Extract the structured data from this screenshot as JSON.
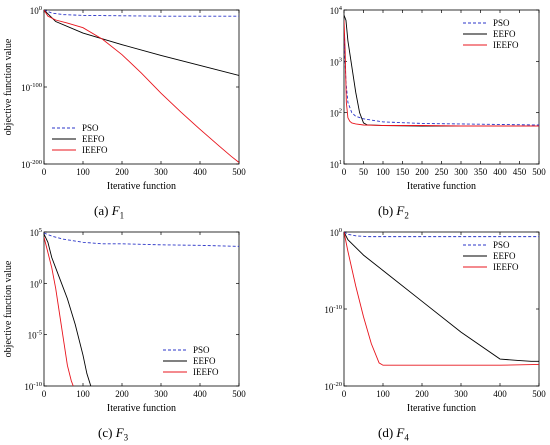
{
  "captions": [
    {
      "label": "(a)",
      "fn": "F",
      "sub": "1"
    },
    {
      "label": "(b)",
      "fn": "F",
      "sub": "2"
    },
    {
      "label": "(c)",
      "fn": "F",
      "sub": "3"
    },
    {
      "label": "(d)",
      "fn": "F",
      "sub": "4"
    }
  ],
  "colors": {
    "PSO": "#2b35c8",
    "EEFO": "#000000",
    "IEEFO": "#e8141c"
  },
  "chart_data": [
    {
      "type": "line",
      "subplot": "a",
      "xlabel": "Iterative function",
      "ylabel": "objective function value",
      "ylog": true,
      "xlim": [
        0,
        500
      ],
      "ylim_exp": [
        -200,
        0
      ],
      "xticks": [
        0,
        100,
        200,
        300,
        400,
        500
      ],
      "yticks": [
        {
          "exp": 0,
          "label": "10",
          "sup": "0"
        },
        {
          "exp": -100,
          "label": "10",
          "sup": "-100"
        },
        {
          "exp": -200,
          "label": "10",
          "sup": "-200"
        }
      ],
      "legend": [
        "PSO",
        "EEFO",
        "IEEFO"
      ],
      "legend_position": "bottom-left",
      "series": [
        {
          "name": "PSO",
          "style": "dashed",
          "x": [
            0,
            20,
            50,
            100,
            200,
            300,
            400,
            500
          ],
          "log10y": [
            0,
            -4,
            -6,
            -7,
            -7.5,
            -8,
            -8,
            -8
          ]
        },
        {
          "name": "EEFO",
          "style": "solid",
          "x": [
            0,
            10,
            30,
            100,
            200,
            300,
            400,
            500
          ],
          "log10y": [
            0,
            -5,
            -15,
            -30,
            -45,
            -59,
            -72,
            -85
          ]
        },
        {
          "name": "IEEFO",
          "style": "solid",
          "x": [
            0,
            10,
            30,
            60,
            100,
            150,
            200,
            250,
            300,
            350,
            400,
            450,
            480,
            500
          ],
          "log10y": [
            0,
            -8,
            -13,
            -17,
            -23,
            -38,
            -58,
            -82,
            -108,
            -132,
            -155,
            -177,
            -190,
            -198
          ]
        }
      ]
    },
    {
      "type": "line",
      "subplot": "b",
      "xlabel": "Iterative function",
      "ylabel": "",
      "ylog": true,
      "xlim": [
        0,
        500
      ],
      "ylim_exp": [
        1,
        4
      ],
      "xticks": [
        0,
        50,
        100,
        150,
        200,
        250,
        300,
        350,
        400,
        450,
        500
      ],
      "yticks": [
        {
          "exp": 1,
          "label": "10",
          "sup": "1"
        },
        {
          "exp": 2,
          "label": "10",
          "sup": "2"
        },
        {
          "exp": 3,
          "label": "10",
          "sup": "3"
        },
        {
          "exp": 4,
          "label": "10",
          "sup": "4"
        }
      ],
      "legend": [
        "PSO",
        "EEFO",
        "IEEFO"
      ],
      "legend_position": "top-right",
      "series": [
        {
          "name": "PSO",
          "style": "dashed",
          "x": [
            0,
            5,
            10,
            20,
            30,
            50,
            100,
            200,
            300,
            400,
            500
          ],
          "log10y": [
            3.5,
            2.6,
            2.2,
            2.0,
            1.93,
            1.88,
            1.82,
            1.79,
            1.78,
            1.77,
            1.76
          ]
        },
        {
          "name": "EEFO",
          "style": "solid",
          "x": [
            0,
            5,
            10,
            20,
            30,
            40,
            50,
            60,
            100,
            200,
            300,
            400,
            500
          ],
          "log10y": [
            3.9,
            3.8,
            3.4,
            2.9,
            2.4,
            2.0,
            1.8,
            1.76,
            1.75,
            1.74,
            1.74,
            1.74,
            1.74
          ]
        },
        {
          "name": "IEEFO",
          "style": "solid",
          "x": [
            0,
            3,
            6,
            10,
            15,
            20,
            30,
            50,
            100,
            200,
            300,
            400,
            500
          ],
          "log10y": [
            3.8,
            3.2,
            2.2,
            1.9,
            1.83,
            1.8,
            1.78,
            1.76,
            1.75,
            1.75,
            1.74,
            1.74,
            1.74
          ]
        }
      ]
    },
    {
      "type": "line",
      "subplot": "c",
      "xlabel": "Iterative function",
      "ylabel": "objective function value",
      "ylog": true,
      "xlim": [
        0,
        500
      ],
      "ylim_exp": [
        -10,
        5
      ],
      "xticks": [
        0,
        100,
        200,
        300,
        400,
        500
      ],
      "yticks": [
        {
          "exp": 5,
          "label": "10",
          "sup": "5"
        },
        {
          "exp": 0,
          "label": "10",
          "sup": "0"
        },
        {
          "exp": -5,
          "label": "10",
          "sup": "-5"
        },
        {
          "exp": -10,
          "label": "10",
          "sup": "-10"
        }
      ],
      "legend": [
        "PSO",
        "EEFO",
        "IEEFO"
      ],
      "legend_position": "bottom-right",
      "series": [
        {
          "name": "PSO",
          "style": "dashed",
          "x": [
            0,
            20,
            50,
            100,
            150,
            200,
            300,
            400,
            500
          ],
          "log10y": [
            4.9,
            4.6,
            4.3,
            4.0,
            3.85,
            3.85,
            3.75,
            3.7,
            3.6
          ]
        },
        {
          "name": "EEFO",
          "style": "solid",
          "x": [
            0,
            10,
            20,
            40,
            60,
            80,
            100,
            110,
            120
          ],
          "log10y": [
            4.8,
            4.0,
            2.5,
            0.5,
            -1.5,
            -4.0,
            -7.0,
            -8.8,
            -10
          ]
        },
        {
          "name": "IEEFO",
          "style": "solid",
          "x": [
            0,
            10,
            20,
            30,
            40,
            50,
            60,
            70,
            75
          ],
          "log10y": [
            4.5,
            3.0,
            1.5,
            -0.5,
            -3.0,
            -5.5,
            -8.0,
            -9.5,
            -10
          ]
        }
      ]
    },
    {
      "type": "line",
      "subplot": "d",
      "xlabel": "Iterative function",
      "ylabel": "",
      "ylog": true,
      "xlim": [
        0,
        500
      ],
      "ylim_exp": [
        -20,
        0
      ],
      "xticks": [
        0,
        100,
        200,
        300,
        400,
        500
      ],
      "yticks": [
        {
          "exp": 0,
          "label": "10",
          "sup": "0"
        },
        {
          "exp": -10,
          "label": "10",
          "sup": "-10"
        },
        {
          "exp": -20,
          "label": "10",
          "sup": "-20"
        }
      ],
      "legend": [
        "PSO",
        "EEFO",
        "IEEFO"
      ],
      "legend_position": "top-right",
      "series": [
        {
          "name": "PSO",
          "style": "dashed",
          "x": [
            0,
            10,
            30,
            60,
            100,
            200,
            300,
            400,
            500
          ],
          "log10y": [
            0,
            -0.3,
            -0.5,
            -0.6,
            -0.6,
            -0.6,
            -0.6,
            -0.6,
            -0.6
          ]
        },
        {
          "name": "EEFO",
          "style": "solid",
          "x": [
            0,
            10,
            50,
            100,
            200,
            300,
            400,
            450,
            480,
            500
          ],
          "log10y": [
            0,
            -1.0,
            -3.0,
            -5.0,
            -9.0,
            -13.0,
            -16.5,
            -16.7,
            -16.8,
            -16.8
          ]
        },
        {
          "name": "IEEFO",
          "style": "solid",
          "x": [
            0,
            10,
            30,
            50,
            70,
            90,
            100,
            200,
            300,
            400,
            500
          ],
          "log10y": [
            0,
            -2.5,
            -7.0,
            -11.0,
            -14.5,
            -17.0,
            -17.3,
            -17.3,
            -17.3,
            -17.3,
            -17.2
          ]
        }
      ]
    }
  ]
}
